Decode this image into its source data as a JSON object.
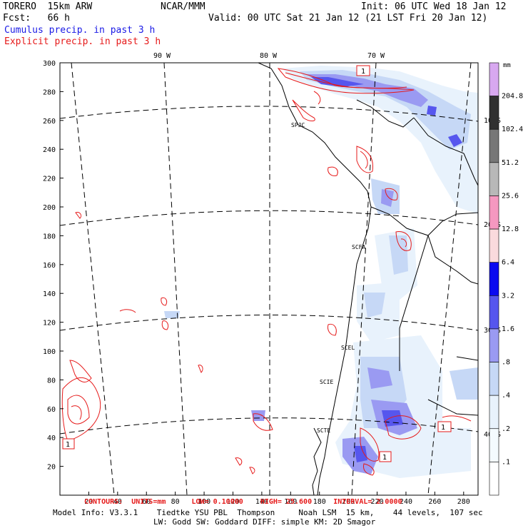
{
  "header": {
    "title_left": "TORERO  15km ARW",
    "forecast_hour": "Fcst:   66 h",
    "center_label": "NCAR/MMM",
    "init_time": "Init: 06 UTC Wed 18 Jan 12",
    "valid_time": "Valid: 00 UTC Sat 21 Jan 12 (21 LST Fri 20 Jan 12)",
    "cumulus_label": "Cumulus precip. in past 3 h",
    "explicit_label": "Explicit precip. in past 3 h",
    "cumulus_color": "#1a1ae6",
    "explicit_color": "#e61a1a"
  },
  "map": {
    "lon_labels": [
      "90 W",
      "80 W",
      "70 W"
    ],
    "lat_labels": [
      "10 S",
      "20 S",
      "30 S",
      "40 S"
    ],
    "x_ticks": [
      "20",
      "40",
      "60",
      "80",
      "100",
      "120",
      "140",
      "160",
      "180",
      "200",
      "220",
      "240",
      "260",
      "280"
    ],
    "y_ticks": [
      "20",
      "40",
      "60",
      "80",
      "100",
      "120",
      "140",
      "160",
      "180",
      "200",
      "220",
      "240",
      "260",
      "280",
      "300"
    ],
    "station_labels": [
      "SPJC",
      "SCFA",
      "SCEL",
      "SCIE",
      "SCTE"
    ],
    "contour_label_value": "1"
  },
  "colorbar": {
    "unit": "mm",
    "levels": [
      "204.8",
      "102.4",
      "51.2",
      "25.6",
      "12.8",
      "6.4",
      "3.2",
      "1.6",
      ".8",
      ".4",
      ".2",
      ".1"
    ],
    "colors": [
      "#d8a8f0",
      "#303030",
      "#777777",
      "#b8b8b8",
      "#f598c0",
      "#fadadd",
      "#0a0af0",
      "#5656ee",
      "#9a9af2",
      "#c6d8f6",
      "#e8f2fc",
      "#f4fbfe",
      "#ffffff"
    ]
  },
  "footer": {
    "contours_line": "CONTOURS:  UNITS=mm      LOW= 0.10000    HIGH= 25.600     INTERVAL= 2.0000",
    "model_info": "Model Info: V3.3.1    Tiedtke YSU PBL  Thompson     Noah LSM  15 km,    44 levels,  107 sec",
    "model_info2": "LW: Godd SW: Goddard DIFF: simple KM: 2D Smagor"
  }
}
